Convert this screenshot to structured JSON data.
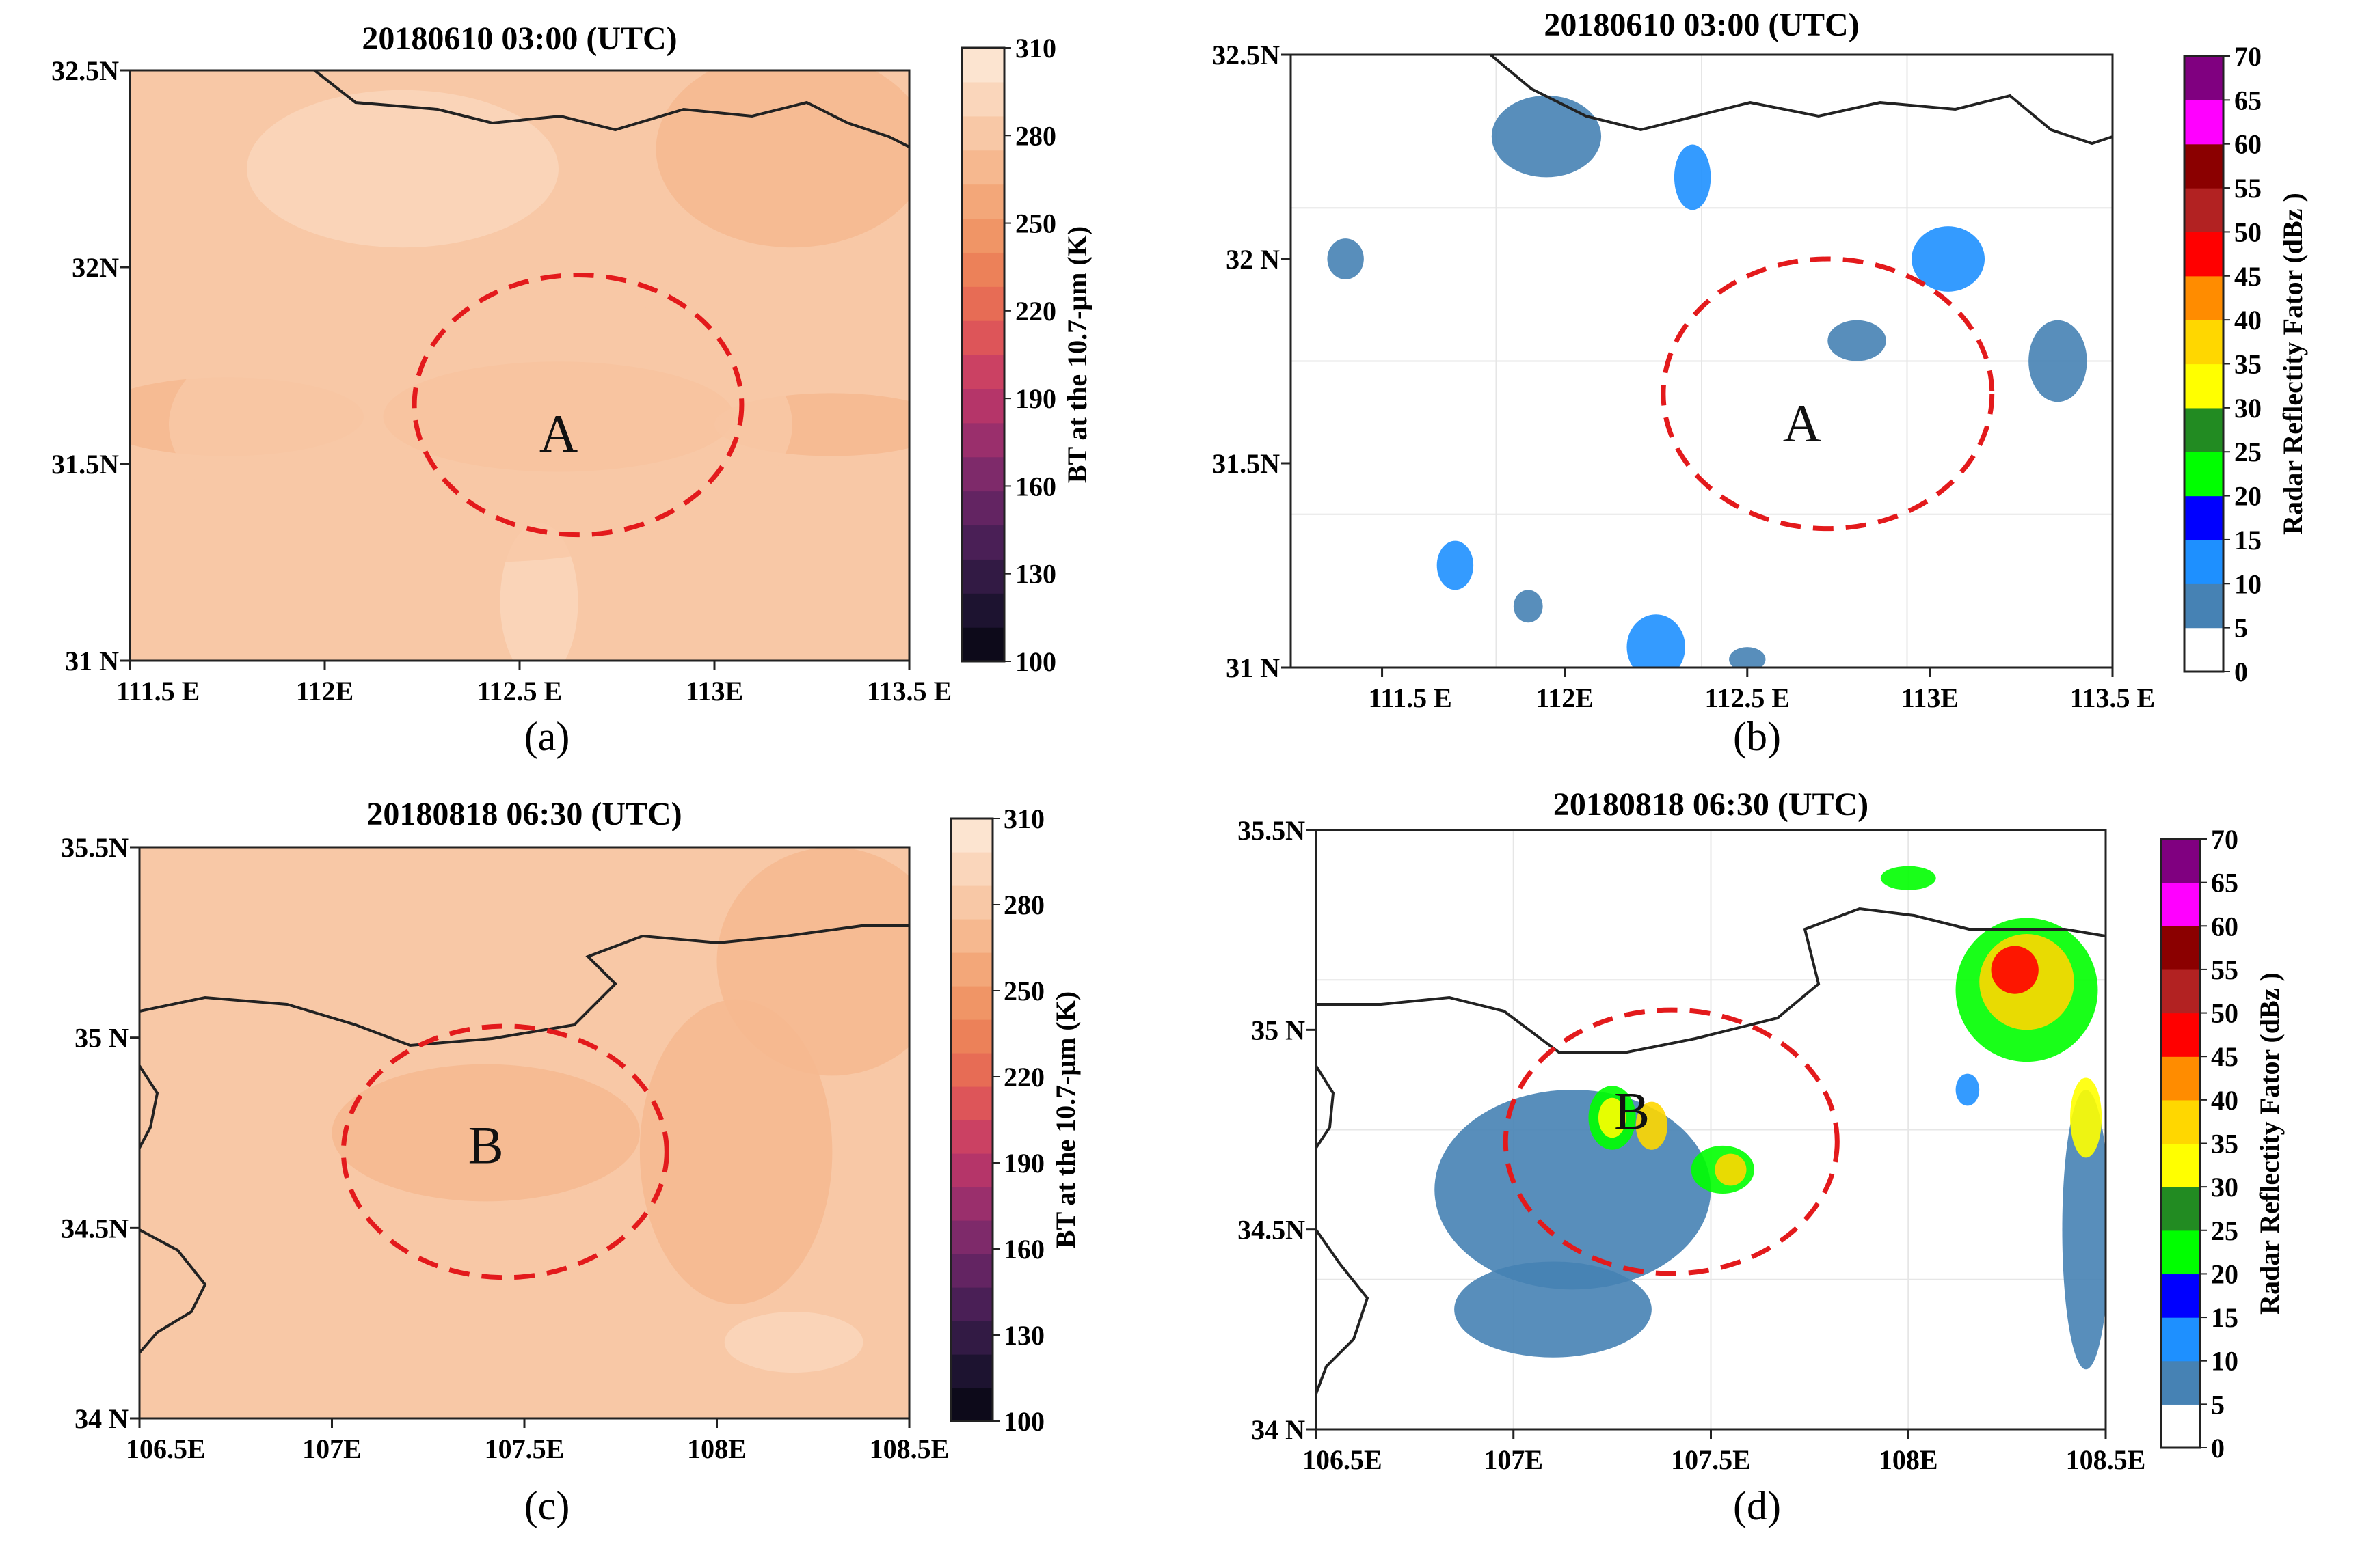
{
  "figure": {
    "caption_labels": [
      "(a)",
      "(b)",
      "(c)",
      "(d)"
    ]
  },
  "colors": {
    "bt_scale": [
      "#0d0a1a",
      "#1d1330",
      "#321a44",
      "#4a1f56",
      "#632462",
      "#7e2a6a",
      "#9a2f6c",
      "#b53569",
      "#cb4163",
      "#dd5559",
      "#e76c55",
      "#ec8159",
      "#f09566",
      "#f3a779",
      "#f6b88f",
      "#f8c8a6",
      "#fad6bb",
      "#fce4d0"
    ],
    "dbz_scale": [
      "#ffffff",
      "#4682b4",
      "#1e90ff",
      "#0000ff",
      "#00ff00",
      "#228b22",
      "#ffff00",
      "#ffd700",
      "#ff8c00",
      "#ff0000",
      "#b22222",
      "#8b0000",
      "#ff00ff",
      "#800080"
    ],
    "circle": "#e31a1c",
    "border": "#222222",
    "grid": "#e6e6e6"
  },
  "chart_data": [
    {
      "id": "a",
      "type": "heatmap",
      "title": "20180610  03:00  (UTC)",
      "variable": "BT at the 10.7-μm (K)",
      "xlim": [
        111.5,
        113.5
      ],
      "ylim": [
        31.0,
        32.5
      ],
      "xticks": [
        111.5,
        112.0,
        112.5,
        113.0,
        113.5
      ],
      "xtick_labels": [
        "111.5  E",
        "112E",
        "112.5  E",
        "113E",
        "113.5  E"
      ],
      "yticks": [
        31.0,
        31.5,
        32.0,
        32.5
      ],
      "ytick_labels": [
        "31  N",
        "31.5N",
        "32N",
        "32.5N"
      ],
      "colorbar": {
        "label": "BT at the 10.7-μm (K)",
        "range": [
          100,
          310
        ],
        "tick_values": [
          100,
          130,
          160,
          190,
          220,
          250,
          280,
          310
        ],
        "tick_labels": [
          "100",
          "130",
          "160",
          "190",
          "220",
          "250",
          "280",
          "310"
        ]
      },
      "background_bt": 286,
      "features": [
        {
          "lon": 112.6,
          "lat": 31.62,
          "rlon": 0.45,
          "rlat": 0.14,
          "bt": 266
        },
        {
          "lon": 111.75,
          "lat": 31.62,
          "rlon": 0.35,
          "rlat": 0.1,
          "bt": 272
        },
        {
          "lon": 113.3,
          "lat": 31.6,
          "rlon": 0.3,
          "rlat": 0.08,
          "bt": 268
        },
        {
          "lon": 113.2,
          "lat": 32.3,
          "rlon": 0.35,
          "rlat": 0.25,
          "bt": 278
        },
        {
          "lon": 112.2,
          "lat": 32.25,
          "rlon": 0.4,
          "rlat": 0.2,
          "bt": 300
        },
        {
          "lon": 112.55,
          "lat": 31.15,
          "rlon": 0.1,
          "rlat": 0.2,
          "bt": 300
        },
        {
          "lon": 112.4,
          "lat": 31.6,
          "rlon": 0.8,
          "rlat": 0.35,
          "bt": 282
        }
      ],
      "annotation": {
        "text": "A",
        "lon": 112.6,
        "lat": 31.58
      },
      "circle": {
        "lon": 112.65,
        "lat": 31.65,
        "rlon": 0.42,
        "rlat": 0.33
      }
    },
    {
      "id": "b",
      "type": "heatmap",
      "title": "20180610  03:00  (UTC)",
      "variable": "Radar Reflectity Fator (dBz)",
      "xlim": [
        111.25,
        113.5
      ],
      "ylim": [
        31.0,
        32.5
      ],
      "xticks": [
        111.5,
        112.0,
        112.5,
        113.0,
        113.5
      ],
      "xtick_labels": [
        "111.5  E",
        "112E",
        "112.5  E",
        "113E",
        "113.5  E"
      ],
      "yticks": [
        31.0,
        31.5,
        32.0,
        32.5
      ],
      "ytick_labels": [
        "31  N",
        "31.5N",
        "32  N",
        "32.5N"
      ],
      "colorbar": {
        "label": "Radar Reflectity Fator (dBz )",
        "range": [
          0,
          70
        ],
        "tick_values": [
          0,
          5,
          10,
          15,
          20,
          25,
          30,
          35,
          40,
          45,
          50,
          55,
          60,
          65,
          70
        ],
        "tick_labels": [
          "0",
          "5",
          "10",
          "15",
          "20",
          "25",
          "30",
          "35",
          "40",
          "45",
          "50",
          "55",
          "60",
          "65",
          "70"
        ]
      },
      "echo_cells": [
        {
          "lon": 111.95,
          "lat": 32.3,
          "rlon": 0.15,
          "rlat": 0.1,
          "dbz": 8
        },
        {
          "lon": 112.35,
          "lat": 32.2,
          "rlon": 0.05,
          "rlat": 0.08,
          "dbz": 12
        },
        {
          "lon": 113.05,
          "lat": 32.0,
          "rlon": 0.1,
          "rlat": 0.08,
          "dbz": 12
        },
        {
          "lon": 113.35,
          "lat": 31.75,
          "rlon": 0.08,
          "rlat": 0.1,
          "dbz": 8
        },
        {
          "lon": 111.7,
          "lat": 31.25,
          "rlon": 0.05,
          "rlat": 0.06,
          "dbz": 10
        },
        {
          "lon": 111.9,
          "lat": 31.15,
          "rlon": 0.04,
          "rlat": 0.04,
          "dbz": 8
        },
        {
          "lon": 112.25,
          "lat": 31.05,
          "rlon": 0.08,
          "rlat": 0.08,
          "dbz": 12
        },
        {
          "lon": 112.5,
          "lat": 31.02,
          "rlon": 0.05,
          "rlat": 0.03,
          "dbz": 8
        },
        {
          "lon": 111.4,
          "lat": 32.0,
          "rlon": 0.05,
          "rlat": 0.05,
          "dbz": 8
        },
        {
          "lon": 112.8,
          "lat": 31.8,
          "rlon": 0.08,
          "rlat": 0.05,
          "dbz": 8
        }
      ],
      "annotation": {
        "text": "A",
        "lon": 112.65,
        "lat": 31.6
      },
      "circle": {
        "lon": 112.72,
        "lat": 31.67,
        "rlon": 0.45,
        "rlat": 0.33
      }
    },
    {
      "id": "c",
      "type": "heatmap",
      "title": "20180818 06:30   (UTC)",
      "variable": "BT at the 10.7-μm (K)",
      "xlim": [
        106.5,
        108.5
      ],
      "ylim": [
        34.0,
        35.5
      ],
      "xticks": [
        106.5,
        107.0,
        107.5,
        108.0,
        108.5
      ],
      "xtick_labels": [
        "106.5E",
        "107E",
        "107.5E",
        "108E",
        "108.5E"
      ],
      "yticks": [
        34.0,
        34.5,
        35.0,
        35.5
      ],
      "ytick_labels": [
        "34  N",
        "34.5N",
        "35  N",
        "35.5N"
      ],
      "colorbar": {
        "label": "BT at the 10.7-μm (K)",
        "range": [
          100,
          310
        ],
        "tick_values": [
          100,
          130,
          160,
          190,
          220,
          250,
          280,
          310
        ],
        "tick_labels": [
          "100",
          "130",
          "160",
          "190",
          "220",
          "250",
          "280",
          "310"
        ]
      },
      "background_bt": 288,
      "features": [
        {
          "lon": 107.4,
          "lat": 34.75,
          "rlon": 0.4,
          "rlat": 0.18,
          "bt": 278
        },
        {
          "lon": 108.3,
          "lat": 35.2,
          "rlon": 0.3,
          "rlat": 0.3,
          "bt": 268
        },
        {
          "lon": 108.05,
          "lat": 34.7,
          "rlon": 0.25,
          "rlat": 0.4,
          "bt": 278
        },
        {
          "lon": 108.2,
          "lat": 34.2,
          "rlon": 0.18,
          "rlat": 0.08,
          "bt": 302
        },
        {
          "lon": 106.7,
          "lat": 34.45,
          "rlon": 0.25,
          "rlat": 0.2,
          "bt": 282
        },
        {
          "lon": 107.2,
          "lat": 34.1,
          "rlon": 0.4,
          "rlat": 0.1,
          "bt": 282
        }
      ],
      "annotation": {
        "text": "B",
        "lon": 107.4,
        "lat": 34.72
      },
      "circle": {
        "lon": 107.45,
        "lat": 34.7,
        "rlon": 0.42,
        "rlat": 0.33
      }
    },
    {
      "id": "d",
      "type": "heatmap",
      "title": "20180818 06:30   (UTC)",
      "variable": "Radar Reflectity Fator (dBz)",
      "xlim": [
        106.5,
        108.5
      ],
      "ylim": [
        34.0,
        35.5
      ],
      "xticks": [
        106.5,
        107.0,
        107.5,
        108.0,
        108.5
      ],
      "xtick_labels": [
        "106.5E",
        "107E",
        "107.5E",
        "108E",
        "108.5E"
      ],
      "yticks": [
        34.0,
        34.5,
        35.0,
        35.5
      ],
      "ytick_labels": [
        "34  N",
        "34.5N",
        "35  N",
        "35.5N"
      ],
      "colorbar": {
        "label": "Radar Reflectity Fator (dBz )",
        "range": [
          0,
          70
        ],
        "tick_values": [
          0,
          5,
          10,
          15,
          20,
          25,
          30,
          35,
          40,
          45,
          50,
          55,
          60,
          65,
          70
        ],
        "tick_labels": [
          "0",
          "5",
          "10",
          "15",
          "20",
          "25",
          "30",
          "35",
          "40",
          "45",
          "50",
          "55",
          "60",
          "65",
          "70"
        ]
      },
      "echo_cells": [
        {
          "lon": 107.15,
          "lat": 34.6,
          "rlon": 0.35,
          "rlat": 0.25,
          "dbz": 8
        },
        {
          "lon": 107.1,
          "lat": 34.3,
          "rlon": 0.25,
          "rlat": 0.12,
          "dbz": 8
        },
        {
          "lon": 108.45,
          "lat": 34.5,
          "rlon": 0.06,
          "rlat": 0.35,
          "dbz": 8
        },
        {
          "lon": 108.3,
          "lat": 35.1,
          "rlon": 0.18,
          "rlat": 0.18,
          "dbz": 22
        },
        {
          "lon": 108.3,
          "lat": 35.12,
          "rlon": 0.12,
          "rlat": 0.12,
          "dbz": 36
        },
        {
          "lon": 108.27,
          "lat": 35.15,
          "rlon": 0.06,
          "rlat": 0.06,
          "dbz": 48
        },
        {
          "lon": 107.25,
          "lat": 34.78,
          "rlon": 0.06,
          "rlat": 0.08,
          "dbz": 22
        },
        {
          "lon": 107.25,
          "lat": 34.78,
          "rlon": 0.035,
          "rlat": 0.05,
          "dbz": 32
        },
        {
          "lon": 107.35,
          "lat": 34.76,
          "rlon": 0.04,
          "rlat": 0.06,
          "dbz": 38
        },
        {
          "lon": 107.53,
          "lat": 34.65,
          "rlon": 0.08,
          "rlat": 0.06,
          "dbz": 22
        },
        {
          "lon": 107.55,
          "lat": 34.65,
          "rlon": 0.04,
          "rlat": 0.04,
          "dbz": 38
        },
        {
          "lon": 108.45,
          "lat": 34.78,
          "rlon": 0.04,
          "rlat": 0.1,
          "dbz": 30
        },
        {
          "lon": 108.0,
          "lat": 35.38,
          "rlon": 0.07,
          "rlat": 0.03,
          "dbz": 22
        },
        {
          "lon": 108.15,
          "lat": 34.85,
          "rlon": 0.03,
          "rlat": 0.04,
          "dbz": 14
        }
      ],
      "annotation": {
        "text": "B",
        "lon": 107.3,
        "lat": 34.8
      },
      "circle": {
        "lon": 107.4,
        "lat": 34.72,
        "rlon": 0.42,
        "rlat": 0.33
      }
    }
  ]
}
